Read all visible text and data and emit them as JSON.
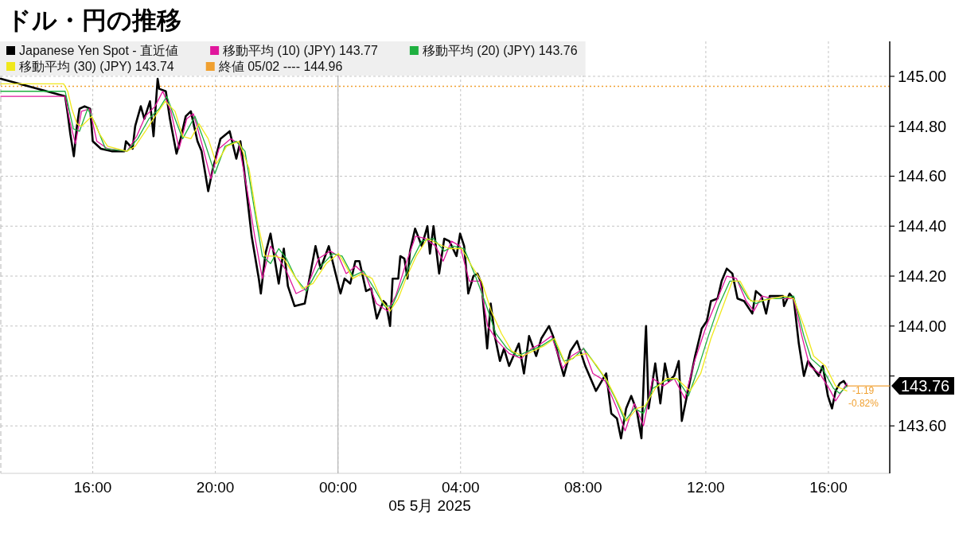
{
  "chart_data": {
    "type": "line",
    "title": "ドル・円の推移",
    "xlabel": "05 5月 2025",
    "xlim": [
      "2025-05-04T13:00",
      "2025-05-05T18:00"
    ],
    "ylim": [
      143.41,
      145.14
    ],
    "xticks": [
      {
        "value": "2025-05-04T16:00",
        "label": "16:00"
      },
      {
        "value": "2025-05-04T20:00",
        "label": "20:00"
      },
      {
        "value": "2025-05-05T00:00",
        "label": "00:00"
      },
      {
        "value": "2025-05-05T04:00",
        "label": "04:00"
      },
      {
        "value": "2025-05-05T08:00",
        "label": "08:00"
      },
      {
        "value": "2025-05-05T12:00",
        "label": "12:00"
      },
      {
        "value": "2025-05-05T16:00",
        "label": "16:00"
      }
    ],
    "yticks": [
      {
        "value": 143.6,
        "label": "143.60"
      },
      {
        "value": 143.8,
        "label": null
      },
      {
        "value": 144,
        "label": "144.00"
      },
      {
        "value": 144.2,
        "label": "144.20"
      },
      {
        "value": 144.4,
        "label": "144.40"
      },
      {
        "value": 144.6,
        "label": "144.60"
      },
      {
        "value": 144.8,
        "label": "144.80"
      },
      {
        "value": 145,
        "label": "145.00"
      }
    ],
    "grid": true,
    "legend": "top left",
    "ref_lines": [
      {
        "axis": "y",
        "value": 144.96,
        "label": "終値 05/02 ---- 144.96",
        "color": "#f0a030",
        "line_style": "dotted"
      },
      {
        "axis": "x",
        "value": "2025-05-05T00:00",
        "color": "#b4b4b4",
        "line_style": "solid"
      }
    ],
    "annotations": [
      {
        "text": "-1.19",
        "x": "2025-05-05T16:42",
        "y": 143.74
      },
      "-0.82%"
    ],
    "series": [
      {
        "name": "Japanese Yen Spot - 直近値",
        "color": "#000000",
        "x": [
          "2025-05-04T13:00",
          "2025-05-04T15:06",
          "2025-05-04T15:11",
          "2025-05-04T15:16",
          "2025-05-04T15:23",
          "2025-05-04T15:29",
          "2025-05-04T15:34",
          "2025-05-04T15:44",
          "2025-05-04T15:55",
          "2025-05-04T16:00",
          "2025-05-04T16:16",
          "2025-05-04T16:37",
          "2025-05-04T17:02",
          "2025-05-04T17:05",
          "2025-05-04T17:18",
          "2025-05-04T17:23",
          "2025-05-04T17:34",
          "2025-05-04T17:41",
          "2025-05-04T17:52",
          "2025-05-04T17:59",
          "2025-05-04T18:07",
          "2025-05-04T18:10",
          "2025-05-04T18:23",
          "2025-05-04T18:31",
          "2025-05-04T18:44",
          "2025-05-04T18:52",
          "2025-05-04T19:02",
          "2025-05-04T19:12",
          "2025-05-04T19:25",
          "2025-05-04T19:33",
          "2025-05-04T19:46",
          "2025-05-04T19:54",
          "2025-05-04T20:10",
          "2025-05-04T20:28",
          "2025-05-04T20:41",
          "2025-05-04T20:49",
          "2025-05-04T20:56",
          "2025-05-04T21:11",
          "2025-05-04T21:25",
          "2025-05-04T21:29",
          "2025-05-04T21:38",
          "2025-05-04T21:48",
          "2025-05-04T22:04",
          "2025-05-04T22:14",
          "2025-05-04T22:22",
          "2025-05-04T22:35",
          "2025-05-04T22:55",
          "2025-05-04T23:16",
          "2025-05-04T23:26",
          "2025-05-04T23:42",
          "2025-05-05T00:05",
          "2025-05-05T00:13",
          "2025-05-05T00:24",
          "2025-05-05T00:34",
          "2025-05-05T00:42",
          "2025-05-05T00:55",
          "2025-05-05T01:05",
          "2025-05-05T01:16",
          "2025-05-05T01:29",
          "2025-05-05T01:34",
          "2025-05-05T01:42",
          "2025-05-05T01:47",
          "2025-05-05T01:58",
          "2025-05-05T02:02",
          "2025-05-05T02:10",
          "2025-05-05T02:16",
          "2025-05-05T02:21",
          "2025-05-05T02:31",
          "2025-05-05T02:44",
          "2025-05-05T02:55",
          "2025-05-05T03:00",
          "2025-05-05T03:07",
          "2025-05-05T03:18",
          "2025-05-05T03:28",
          "2025-05-05T03:38",
          "2025-05-05T03:52",
          "2025-05-05T03:59",
          "2025-05-05T04:07",
          "2025-05-05T04:15",
          "2025-05-05T04:25",
          "2025-05-05T04:33",
          "2025-05-05T04:41",
          "2025-05-05T04:52",
          "2025-05-05T04:59",
          "2025-05-05T05:07",
          "2025-05-05T05:17",
          "2025-05-05T05:25",
          "2025-05-05T05:35",
          "2025-05-05T05:54",
          "2025-05-05T06:04",
          "2025-05-05T06:14",
          "2025-05-05T06:28",
          "2025-05-05T06:38",
          "2025-05-05T06:53",
          "2025-05-05T07:01",
          "2025-05-05T07:22",
          "2025-05-05T07:35",
          "2025-05-05T07:48",
          "2025-05-05T08:04",
          "2025-05-05T08:25",
          "2025-05-05T08:45",
          "2025-05-05T08:55",
          "2025-05-05T09:06",
          "2025-05-05T09:14",
          "2025-05-05T09:24",
          "2025-05-05T09:34",
          "2025-05-05T09:45",
          "2025-05-05T09:54",
          "2025-05-05T10:01",
          "2025-05-05T10:03",
          "2025-05-05T10:08",
          "2025-05-05T10:21",
          "2025-05-05T10:31",
          "2025-05-05T10:40",
          "2025-05-05T10:47",
          "2025-05-05T10:58",
          "2025-05-05T11:07",
          "2025-05-05T11:13",
          "2025-05-05T11:26",
          "2025-05-05T11:39",
          "2025-05-05T11:52",
          "2025-05-05T12:02",
          "2025-05-05T12:10",
          "2025-05-05T12:23",
          "2025-05-05T12:31",
          "2025-05-05T12:41",
          "2025-05-05T12:52",
          "2025-05-05T13:02",
          "2025-05-05T13:15",
          "2025-05-05T13:31",
          "2025-05-05T13:38",
          "2025-05-05T13:49",
          "2025-05-05T13:58",
          "2025-05-05T14:05",
          "2025-05-05T14:31",
          "2025-05-05T14:33",
          "2025-05-05T14:44",
          "2025-05-05T14:52",
          "2025-05-05T15:02",
          "2025-05-05T15:12",
          "2025-05-05T15:20",
          "2025-05-05T15:31",
          "2025-05-05T15:41",
          "2025-05-05T15:49",
          "2025-05-05T15:59",
          "2025-05-05T16:07",
          "2025-05-05T16:14",
          "2025-05-05T16:22",
          "2025-05-05T16:30",
          "2025-05-05T16:36"
        ],
        "values": [
          144.99,
          144.92,
          144.85,
          144.77,
          144.68,
          144.8,
          144.87,
          144.88,
          144.87,
          144.74,
          144.71,
          144.7,
          144.7,
          144.74,
          144.71,
          144.8,
          144.88,
          144.83,
          144.9,
          144.76,
          144.99,
          144.95,
          144.94,
          144.83,
          144.69,
          144.75,
          144.84,
          144.86,
          144.74,
          144.7,
          144.54,
          144.62,
          144.75,
          144.78,
          144.67,
          144.74,
          144.63,
          144.36,
          144.19,
          144.13,
          144.29,
          144.37,
          144.17,
          144.31,
          144.16,
          144.08,
          144.09,
          144.32,
          144.23,
          144.32,
          144.13,
          144.19,
          144.17,
          144.26,
          144.26,
          144.14,
          144.15,
          144.03,
          144.1,
          144.09,
          144.0,
          144.19,
          144.19,
          144.28,
          144.27,
          144.19,
          144.3,
          144.39,
          144.32,
          144.4,
          144.29,
          144.4,
          144.21,
          144.35,
          144.34,
          144.28,
          144.37,
          144.32,
          144.13,
          144.2,
          144.21,
          144.17,
          143.91,
          144.09,
          143.96,
          143.86,
          143.91,
          143.84,
          143.93,
          143.81,
          143.96,
          143.88,
          143.95,
          144.0,
          143.96,
          143.8,
          143.9,
          143.94,
          143.84,
          143.74,
          143.81,
          143.65,
          143.63,
          143.55,
          143.67,
          143.72,
          143.66,
          143.55,
          143.92,
          144.0,
          143.67,
          143.85,
          143.69,
          143.85,
          143.78,
          143.8,
          143.86,
          143.62,
          143.75,
          143.88,
          143.99,
          144.02,
          144.1,
          144.11,
          144.18,
          144.23,
          144.21,
          144.11,
          144.1,
          144.05,
          144.14,
          144.12,
          144.05,
          144.12,
          144.12,
          144.08,
          144.13,
          144.11,
          143.93,
          143.8,
          143.86,
          143.83,
          143.8,
          143.84,
          143.72,
          143.67,
          143.74,
          143.77,
          143.78,
          143.76
        ],
        "value_labels": [
          null,
          null,
          null,
          null,
          null,
          null,
          null,
          null,
          null,
          null,
          null,
          null,
          null,
          null,
          null,
          null,
          null,
          null,
          null,
          null,
          null,
          null,
          null,
          null,
          null,
          null,
          null,
          null,
          null,
          null,
          null,
          null,
          null,
          null,
          null,
          null,
          null,
          null,
          null,
          null,
          null,
          null,
          null,
          null,
          null,
          null,
          null,
          null,
          null,
          null,
          null,
          null,
          null,
          null,
          null,
          null,
          null,
          null,
          null,
          null,
          null,
          null,
          null,
          null,
          null,
          null,
          null,
          null,
          null,
          null,
          null,
          null,
          null,
          null,
          null,
          null,
          null,
          null,
          null,
          null,
          null,
          null,
          null,
          null,
          null,
          null,
          null,
          null,
          null,
          null,
          null,
          null,
          null,
          null,
          null,
          null,
          null,
          null,
          null,
          null,
          null,
          null,
          null,
          null,
          null,
          null,
          null,
          null,
          null,
          null,
          null,
          null,
          null,
          null,
          null,
          null,
          null,
          null,
          null,
          null,
          null,
          null,
          null,
          null,
          null,
          null,
          null,
          null,
          null,
          null,
          null,
          null,
          null,
          null,
          null,
          null,
          null,
          null,
          null,
          null,
          null,
          null,
          null,
          null,
          null,
          null,
          null,
          null,
          null,
          "143.76"
        ]
      },
      {
        "name": "移動平均 (10) (JPY) 143.77",
        "color": "#e0169c",
        "x": [
          "2025-05-04T13:00",
          "2025-05-04T15:06",
          "2025-05-04T15:15",
          "2025-05-04T15:26",
          "2025-05-04T15:38",
          "2025-05-04T15:54",
          "2025-05-04T16:08",
          "2025-05-04T16:29",
          "2025-05-04T17:07",
          "2025-05-04T17:26",
          "2025-05-04T17:43",
          "2025-05-04T18:02",
          "2025-05-04T18:17",
          "2025-05-04T18:33",
          "2025-05-04T18:49",
          "2025-05-04T19:04",
          "2025-05-04T19:17",
          "2025-05-04T19:35",
          "2025-05-04T19:51",
          "2025-05-04T20:07",
          "2025-05-04T20:30",
          "2025-05-04T20:46",
          "2025-05-04T21:01",
          "2025-05-04T21:17",
          "2025-05-04T21:32",
          "2025-05-04T21:48",
          "2025-05-04T22:04",
          "2025-05-04T22:19",
          "2025-05-04T22:38",
          "2025-05-04T22:58",
          "2025-05-04T23:22",
          "2025-05-04T23:45",
          "2025-05-05T00:01",
          "2025-05-05T00:16",
          "2025-05-05T00:35",
          "2025-05-05T00:55",
          "2025-05-05T01:15",
          "2025-05-05T01:37",
          "2025-05-05T01:53",
          "2025-05-05T02:13",
          "2025-05-05T02:32",
          "2025-05-05T02:52",
          "2025-05-05T03:11",
          "2025-05-05T03:26",
          "2025-05-05T03:42",
          "2025-05-05T03:59",
          "2025-05-05T04:17",
          "2025-05-05T04:38",
          "2025-05-05T04:53",
          "2025-05-05T05:12",
          "2025-05-05T05:35",
          "2025-05-05T05:59",
          "2025-05-05T06:19",
          "2025-05-05T06:38",
          "2025-05-05T06:58",
          "2025-05-05T07:20",
          "2025-05-05T07:37",
          "2025-05-05T08:01",
          "2025-05-05T08:19",
          "2025-05-05T08:43",
          "2025-05-05T09:06",
          "2025-05-05T09:22",
          "2025-05-05T09:40",
          "2025-05-05T09:58",
          "2025-05-05T10:16",
          "2025-05-05T10:37",
          "2025-05-05T10:58",
          "2025-05-05T11:19",
          "2025-05-05T11:38",
          "2025-05-05T12:01",
          "2025-05-05T12:21",
          "2025-05-05T12:41",
          "2025-05-05T13:00",
          "2025-05-05T13:19",
          "2025-05-05T13:34",
          "2025-05-05T13:50",
          "2025-05-05T14:10",
          "2025-05-05T14:33",
          "2025-05-05T14:52",
          "2025-05-05T15:08",
          "2025-05-05T15:23",
          "2025-05-05T15:43",
          "2025-05-05T16:04",
          "2025-05-05T16:14",
          "2025-05-05T16:36"
        ],
        "values": [
          144.92,
          144.92,
          144.82,
          144.73,
          144.86,
          144.87,
          144.74,
          144.71,
          144.7,
          144.76,
          144.84,
          144.88,
          144.94,
          144.86,
          144.71,
          144.83,
          144.85,
          144.72,
          144.59,
          144.71,
          144.75,
          144.73,
          144.56,
          144.36,
          144.19,
          144.32,
          144.27,
          144.22,
          144.13,
          144.15,
          144.27,
          144.3,
          144.28,
          144.21,
          144.24,
          144.2,
          144.09,
          144.06,
          144.12,
          144.25,
          144.36,
          144.35,
          144.32,
          144.26,
          144.34,
          144.32,
          144.18,
          144.18,
          144.0,
          143.94,
          143.89,
          143.87,
          143.91,
          143.93,
          143.96,
          143.83,
          143.88,
          143.91,
          143.81,
          143.78,
          143.67,
          143.58,
          143.69,
          143.6,
          143.79,
          143.76,
          143.79,
          143.71,
          143.86,
          144.0,
          144.1,
          144.2,
          144.19,
          144.1,
          144.06,
          144.12,
          144.11,
          144.11,
          144.11,
          143.96,
          143.84,
          143.81,
          143.74,
          143.7,
          143.77
        ]
      },
      {
        "name": "移動平均 (20) (JPY) 143.76",
        "color": "#1fb040",
        "x": [
          "2025-05-04T13:00",
          "2025-05-04T15:06",
          "2025-05-04T15:22",
          "2025-05-04T15:34",
          "2025-05-04T15:50",
          "2025-05-04T16:05",
          "2025-05-04T16:25",
          "2025-05-04T17:07",
          "2025-05-04T17:28",
          "2025-05-04T17:50",
          "2025-05-04T18:10",
          "2025-05-04T18:25",
          "2025-05-04T18:41",
          "2025-05-04T18:56",
          "2025-05-04T19:20",
          "2025-05-04T19:40",
          "2025-05-04T19:59",
          "2025-05-04T20:19",
          "2025-05-04T20:41",
          "2025-05-04T20:58",
          "2025-05-04T21:17",
          "2025-05-04T21:32",
          "2025-05-04T21:48",
          "2025-05-04T22:04",
          "2025-05-04T22:19",
          "2025-05-04T22:38",
          "2025-05-04T22:58",
          "2025-05-04T23:22",
          "2025-05-04T23:50",
          "2025-05-05T00:08",
          "2025-05-05T00:29",
          "2025-05-05T00:50",
          "2025-05-05T01:11",
          "2025-05-05T01:31",
          "2025-05-05T01:46",
          "2025-05-05T02:05",
          "2025-05-05T02:24",
          "2025-05-05T02:44",
          "2025-05-05T03:07",
          "2025-05-05T03:28",
          "2025-05-05T03:46",
          "2025-05-05T04:07",
          "2025-05-05T04:29",
          "2025-05-05T04:49",
          "2025-05-05T05:09",
          "2025-05-05T05:31",
          "2025-05-05T05:51",
          "2025-05-05T06:14",
          "2025-05-05T06:38",
          "2025-05-05T07:01",
          "2025-05-05T07:22",
          "2025-05-05T07:40",
          "2025-05-05T08:01",
          "2025-05-05T08:19",
          "2025-05-05T08:43",
          "2025-05-05T09:03",
          "2025-05-05T09:22",
          "2025-05-05T09:40",
          "2025-05-05T09:58",
          "2025-05-05T10:16",
          "2025-05-05T10:40",
          "2025-05-05T11:03",
          "2025-05-05T11:26",
          "2025-05-05T11:45",
          "2025-05-05T12:05",
          "2025-05-05T12:25",
          "2025-05-05T12:47",
          "2025-05-05T13:03",
          "2025-05-05T13:23",
          "2025-05-05T13:38",
          "2025-05-05T14:02",
          "2025-05-05T14:25",
          "2025-05-05T14:52",
          "2025-05-05T15:12",
          "2025-05-05T15:26",
          "2025-05-05T15:48",
          "2025-05-05T16:10",
          "2025-05-05T16:22",
          "2025-05-05T16:36"
        ],
        "values": [
          144.94,
          144.94,
          144.79,
          144.78,
          144.87,
          144.81,
          144.71,
          144.7,
          144.75,
          144.83,
          144.87,
          144.92,
          144.83,
          144.75,
          144.84,
          144.73,
          144.61,
          144.72,
          144.74,
          144.7,
          144.46,
          144.28,
          144.25,
          144.31,
          144.27,
          144.19,
          144.14,
          144.23,
          144.29,
          144.28,
          144.2,
          144.22,
          144.15,
          144.08,
          144.08,
          144.17,
          144.26,
          144.34,
          144.35,
          144.3,
          144.32,
          144.31,
          144.2,
          144.09,
          143.97,
          143.91,
          143.88,
          143.9,
          143.92,
          143.95,
          143.86,
          143.87,
          143.91,
          143.86,
          143.79,
          143.71,
          143.62,
          143.67,
          143.65,
          143.75,
          143.78,
          143.79,
          143.72,
          143.83,
          143.96,
          144.08,
          144.18,
          144.18,
          144.11,
          144.09,
          144.11,
          144.11,
          144.12,
          143.96,
          143.87,
          143.83,
          143.75,
          143.73,
          143.76
        ]
      },
      {
        "name": "移動平均 (30) (JPY) 143.74",
        "color": "#f0e81c",
        "x": [
          "2025-05-04T13:00",
          "2025-05-04T15:03",
          "2025-05-04T15:11",
          "2025-05-04T15:19",
          "2025-05-04T15:29",
          "2025-05-04T15:38",
          "2025-05-04T15:58",
          "2025-05-04T16:13",
          "2025-05-04T16:29",
          "2025-05-04T17:07",
          "2025-05-04T17:23",
          "2025-05-04T17:43",
          "2025-05-04T18:02",
          "2025-05-04T18:22",
          "2025-05-04T18:41",
          "2025-05-04T18:56",
          "2025-05-04T19:12",
          "2025-05-04T19:28",
          "2025-05-04T19:46",
          "2025-05-04T20:02",
          "2025-05-04T20:22",
          "2025-05-04T20:46",
          "2025-05-04T21:06",
          "2025-05-04T21:22",
          "2025-05-04T21:37",
          "2025-05-04T21:56",
          "2025-05-04T22:14",
          "2025-05-04T22:32",
          "2025-05-04T22:50",
          "2025-05-04T23:11",
          "2025-05-04T23:37",
          "2025-05-05T00:01",
          "2025-05-05T00:13",
          "2025-05-05T00:29",
          "2025-05-05T00:47",
          "2025-05-05T01:07",
          "2025-05-05T01:26",
          "2025-05-05T01:42",
          "2025-05-05T01:58",
          "2025-05-05T02:13",
          "2025-05-05T02:33",
          "2025-05-05T02:55",
          "2025-05-05T03:15",
          "2025-05-05T03:38",
          "2025-05-05T04:02",
          "2025-05-05T04:22",
          "2025-05-05T04:41",
          "2025-05-05T05:00",
          "2025-05-05T05:20",
          "2025-05-05T05:40",
          "2025-05-05T06:02",
          "2025-05-05T06:22",
          "2025-05-05T06:43",
          "2025-05-05T07:04",
          "2025-05-05T07:25",
          "2025-05-05T07:45",
          "2025-05-05T08:07",
          "2025-05-05T08:27",
          "2025-05-05T08:47",
          "2025-05-05T09:09",
          "2025-05-05T09:25",
          "2025-05-05T09:45",
          "2025-05-05T10:01",
          "2025-05-05T10:21",
          "2025-05-05T10:43",
          "2025-05-05T11:03",
          "2025-05-05T11:29",
          "2025-05-05T11:50",
          "2025-05-05T12:10",
          "2025-05-05T12:32",
          "2025-05-05T12:52",
          "2025-05-05T13:07",
          "2025-05-05T13:28",
          "2025-05-05T13:46",
          "2025-05-05T14:10",
          "2025-05-05T14:33",
          "2025-05-05T14:52",
          "2025-05-05T15:12",
          "2025-05-05T15:31",
          "2025-05-05T15:54",
          "2025-05-05T16:14",
          "2025-05-05T16:36"
        ],
        "values": [
          144.97,
          144.97,
          144.94,
          144.87,
          144.81,
          144.8,
          144.84,
          144.77,
          144.72,
          144.7,
          144.72,
          144.78,
          144.84,
          144.9,
          144.86,
          144.76,
          144.75,
          144.81,
          144.75,
          144.65,
          144.72,
          144.74,
          144.63,
          144.42,
          144.28,
          144.28,
          144.27,
          144.21,
          144.15,
          144.17,
          144.25,
          144.29,
          144.25,
          144.19,
          144.21,
          144.19,
          144.1,
          144.06,
          144.11,
          144.19,
          144.28,
          144.35,
          144.33,
          144.31,
          144.31,
          144.24,
          144.18,
          144.06,
          143.97,
          143.9,
          143.88,
          143.9,
          143.92,
          143.95,
          143.85,
          143.88,
          143.89,
          143.84,
          143.78,
          143.69,
          143.62,
          143.67,
          143.68,
          143.75,
          143.79,
          143.79,
          143.74,
          143.81,
          143.95,
          144.07,
          144.18,
          144.18,
          144.1,
          144.1,
          144.11,
          144.12,
          144.11,
          144.0,
          143.88,
          143.84,
          143.76,
          143.74
        ]
      }
    ]
  }
}
